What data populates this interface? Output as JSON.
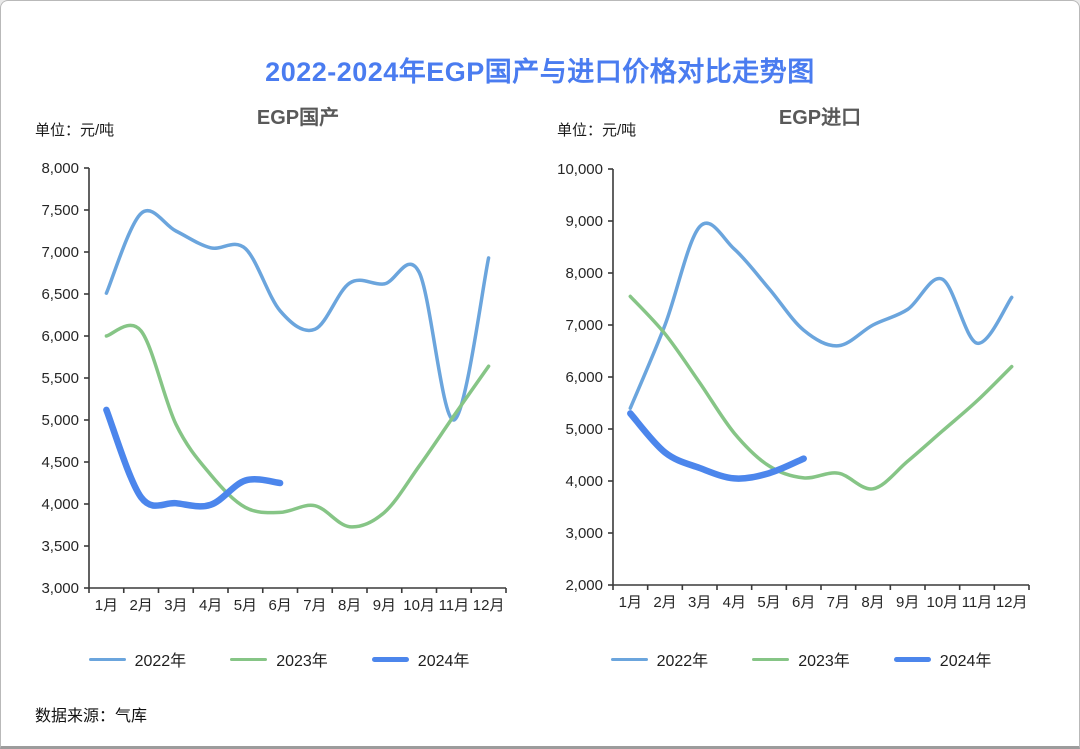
{
  "page": {
    "title": "2022-2024年EGP国产与进口价格对比走势图",
    "title_color": "#4a7cf0",
    "source_label": "数据来源：气库"
  },
  "chart_data": [
    {
      "type": "line",
      "title": "EGP国产",
      "unit_label": "单位：元/吨",
      "categories": [
        "1月",
        "2月",
        "3月",
        "4月",
        "5月",
        "6月",
        "7月",
        "8月",
        "9月",
        "10月",
        "11月",
        "12月"
      ],
      "ylim": [
        3000,
        8000
      ],
      "ytick_step": 500,
      "grid": false,
      "legend_position": "bottom",
      "axis_color": "#3a3a3a",
      "series": [
        {
          "name": "2022年",
          "color": "#6ba5dd",
          "width": 3.5,
          "values": [
            6510,
            7460,
            7250,
            7050,
            7040,
            6300,
            6080,
            6630,
            6620,
            6760,
            5000,
            6930
          ]
        },
        {
          "name": "2023年",
          "color": "#86c586",
          "width": 3.5,
          "values": [
            6000,
            6060,
            4950,
            4350,
            3960,
            3900,
            3980,
            3730,
            3900,
            4450,
            5050,
            5640
          ]
        },
        {
          "name": "2024年",
          "color": "#4c86ec",
          "width": 6.5,
          "values": [
            5120,
            4080,
            4010,
            3990,
            4280,
            4250,
            null,
            null,
            null,
            null,
            null,
            null
          ]
        }
      ]
    },
    {
      "type": "line",
      "title": "EGP进口",
      "unit_label": "单位：元/吨",
      "categories": [
        "1月",
        "2月",
        "3月",
        "4月",
        "5月",
        "6月",
        "7月",
        "8月",
        "9月",
        "10月",
        "11月",
        "12月"
      ],
      "ylim": [
        2000,
        10000
      ],
      "ytick_step": 1000,
      "grid": false,
      "legend_position": "bottom",
      "axis_color": "#3a3a3a",
      "series": [
        {
          "name": "2022年",
          "color": "#6ba5dd",
          "width": 3.5,
          "values": [
            5400,
            7000,
            8890,
            8460,
            7700,
            6900,
            6600,
            7000,
            7300,
            7880,
            6650,
            7530
          ]
        },
        {
          "name": "2023年",
          "color": "#86c586",
          "width": 3.5,
          "values": [
            7550,
            6830,
            5890,
            4920,
            4290,
            4060,
            4150,
            3850,
            4380,
            4960,
            5540,
            6200
          ]
        },
        {
          "name": "2024年",
          "color": "#4c86ec",
          "width": 6.5,
          "values": [
            5300,
            4550,
            4250,
            4050,
            4150,
            4430,
            null,
            null,
            null,
            null,
            null,
            null
          ]
        }
      ]
    }
  ]
}
